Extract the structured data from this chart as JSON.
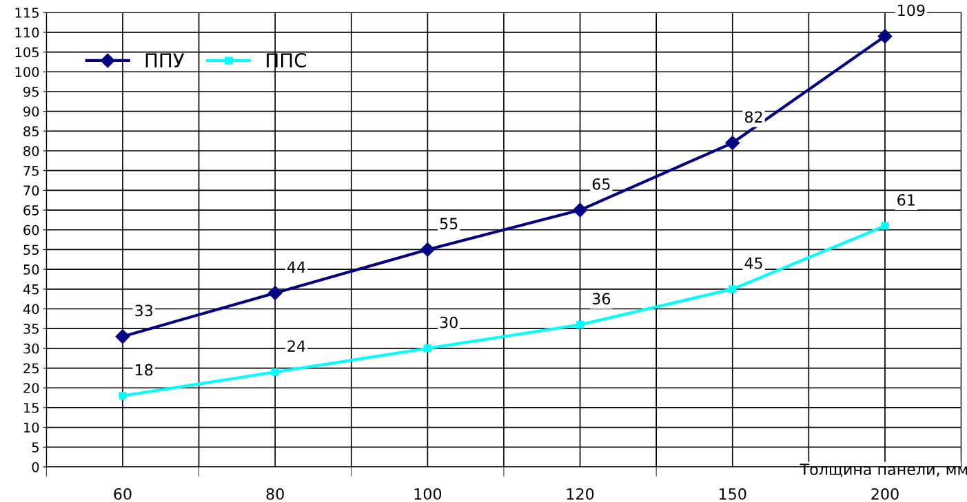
{
  "chart_data": {
    "type": "line",
    "xlabel": "Толщина панели, мм",
    "categories": [
      "60",
      "80",
      "100",
      "120",
      "150",
      "200"
    ],
    "series": [
      {
        "name": "ППУ",
        "color": "#000080",
        "marker": "diamond",
        "values": [
          33,
          44,
          55,
          65,
          82,
          109
        ]
      },
      {
        "name": "ППС",
        "color": "#00ffff",
        "marker": "square",
        "values": [
          18,
          24,
          30,
          36,
          45,
          61
        ]
      }
    ],
    "ylim": [
      0,
      115
    ],
    "yticks": [
      0,
      5,
      10,
      15,
      20,
      25,
      30,
      35,
      40,
      45,
      50,
      55,
      60,
      65,
      70,
      75,
      80,
      85,
      90,
      95,
      100,
      105,
      110,
      115
    ],
    "grid": true,
    "legend": "top left",
    "data_labels": true,
    "line_style": "solid"
  }
}
